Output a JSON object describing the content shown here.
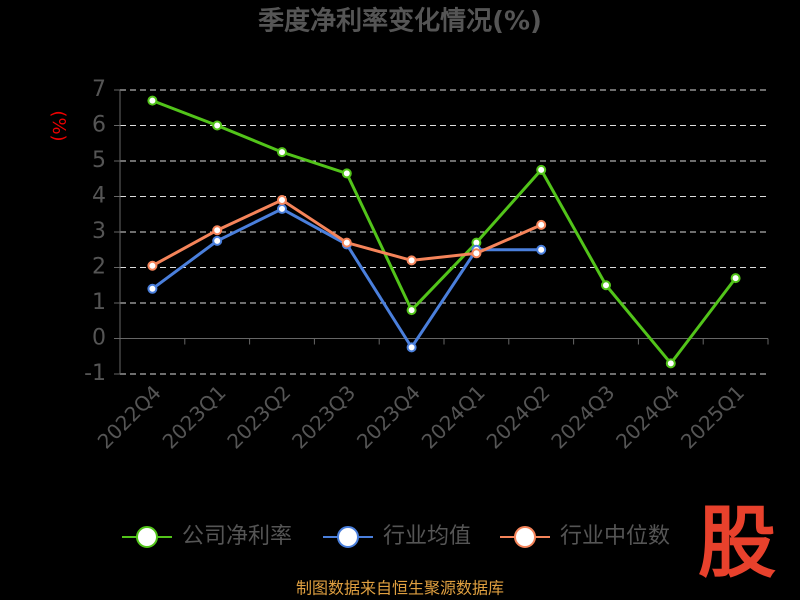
{
  "chart_data": {
    "type": "line",
    "title": "季度净利率变化情况(%)",
    "y_label": "(%)",
    "categories": [
      "2022Q4",
      "2023Q1",
      "2023Q2",
      "2023Q3",
      "2023Q4",
      "2024Q1",
      "2024Q2",
      "2024Q3",
      "2024Q4",
      "2025Q1"
    ],
    "series": [
      {
        "name": "公司净利率",
        "color": "#52c41a",
        "values": [
          6.7,
          6.0,
          5.25,
          4.65,
          0.8,
          2.7,
          4.75,
          1.5,
          -0.7,
          1.7
        ]
      },
      {
        "name": "行业均值",
        "color": "#4a7fdc",
        "values": [
          1.4,
          2.75,
          3.65,
          2.65,
          -0.25,
          2.5,
          2.5,
          null,
          null,
          null
        ]
      },
      {
        "name": "行业中位数",
        "color": "#f5845a",
        "values": [
          2.05,
          3.05,
          3.9,
          2.7,
          2.2,
          2.4,
          3.2,
          null,
          null,
          null
        ]
      }
    ],
    "ylim": [
      -1,
      7
    ],
    "yticks": [
      -1,
      0,
      1,
      2,
      3,
      4,
      5,
      6,
      7
    ],
    "grid": true,
    "legend": "bottom",
    "source": "制图数据来自恒生聚源数据库",
    "logo": "股"
  }
}
